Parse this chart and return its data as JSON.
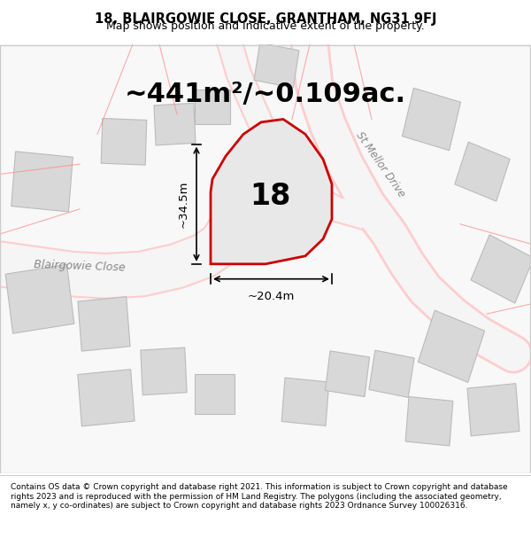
{
  "title": "18, BLAIRGOWIE CLOSE, GRANTHAM, NG31 9FJ",
  "subtitle": "Map shows position and indicative extent of the property.",
  "footer": "Contains OS data © Crown copyright and database right 2021. This information is subject to Crown copyright and database rights 2023 and is reproduced with the permission of HM Land Registry. The polygons (including the associated geometry, namely x, y co-ordinates) are subject to Crown copyright and database rights 2023 Ordnance Survey 100026316.",
  "bg_color": "#f0f0f0",
  "map_bg": "#f8f8f8",
  "plot_fill": "#e8e8e8",
  "plot_outline": "#cc0000",
  "road_color": "#ffcccc",
  "building_color": "#d8d8d8",
  "building_outline": "#bbbbbb",
  "area_text": "~441m²/~0.109ac.",
  "label_text": "18",
  "dim_width": "~20.4m",
  "dim_height": "~34.5m",
  "street_label1": "Blairgowie Close",
  "street_label2": "St Mellor Drive"
}
